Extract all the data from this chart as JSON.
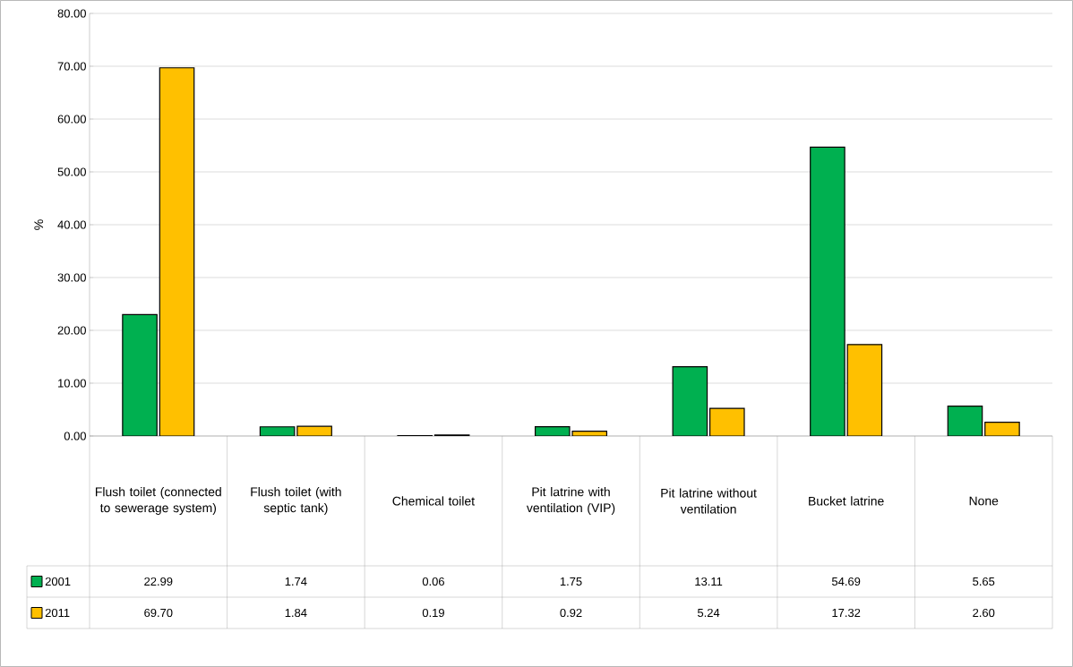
{
  "chart_data": {
    "type": "bar",
    "ylabel": "%",
    "categories": [
      "Flush toilet (connected to sewerage system)",
      "Flush toilet (with septic tank)",
      "Chemical toilet",
      "Pit latrine with ventilation (VIP)",
      "Pit latrine without ventilation",
      "Bucket latrine",
      "None"
    ],
    "series": [
      {
        "name": "2001",
        "color": "#00b050",
        "values": [
          22.99,
          1.74,
          0.06,
          1.75,
          13.11,
          54.69,
          5.65
        ],
        "value_labels": [
          "22.99",
          "1.74",
          "0.06",
          "1.75",
          "13.11",
          "54.69",
          "5.65"
        ]
      },
      {
        "name": "2011",
        "color": "#ffc000",
        "values": [
          69.7,
          1.84,
          0.19,
          0.92,
          5.24,
          17.32,
          2.6
        ],
        "value_labels": [
          "69.70",
          "1.84",
          "0.19",
          "0.92",
          "5.24",
          "17.32",
          "2.60"
        ]
      }
    ],
    "ylim": [
      0,
      80
    ],
    "yticks": [
      {
        "value": 0,
        "label": "0.00"
      },
      {
        "value": 10,
        "label": "10.00"
      },
      {
        "value": 20,
        "label": "20.00"
      },
      {
        "value": 30,
        "label": "30.00"
      },
      {
        "value": 40,
        "label": "40.00"
      },
      {
        "value": 50,
        "label": "50.00"
      },
      {
        "value": 60,
        "label": "60.00"
      },
      {
        "value": 70,
        "label": "70.00"
      },
      {
        "value": 80,
        "label": "80.00"
      }
    ],
    "grid": "y",
    "legend": "bottom"
  }
}
